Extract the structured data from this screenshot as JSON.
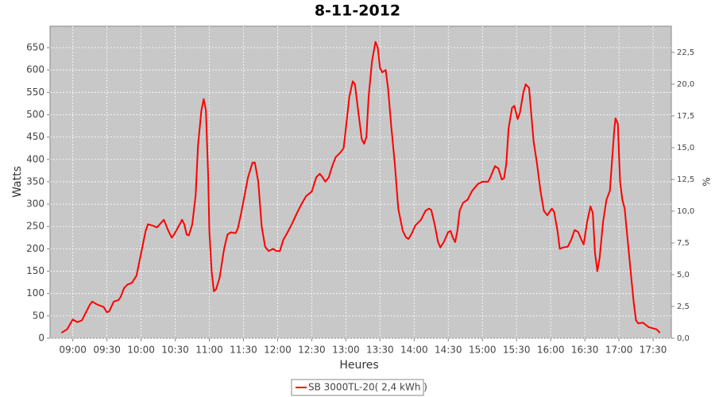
{
  "chart_data": {
    "type": "line",
    "title": "8-11-2012",
    "x_label": "Heures",
    "y_label": "Watts",
    "y2_label": "%",
    "grid": true,
    "legend": "bottom",
    "x": [
      530,
      535,
      540,
      544,
      548,
      551,
      555,
      557,
      561,
      567,
      570,
      572,
      576,
      580,
      582,
      585,
      588,
      592,
      596,
      600,
      604,
      606,
      610,
      614,
      620,
      624,
      627,
      629,
      634,
      636,
      638,
      640,
      642,
      645,
      648,
      650,
      653,
      655,
      657,
      659,
      660,
      662,
      664,
      666,
      669,
      673,
      676,
      679,
      683,
      685,
      688,
      691,
      694,
      698,
      700,
      703,
      706,
      709,
      712,
      716,
      719,
      722,
      725,
      729,
      733,
      737,
      741,
      745,
      750,
      754,
      757,
      759,
      762,
      765,
      768,
      771,
      775,
      778,
      780,
      783,
      786,
      788,
      791,
      794,
      796,
      798,
      800,
      803,
      806,
      808,
      810,
      812,
      815,
      817,
      820,
      823,
      826,
      830,
      833,
      835,
      838,
      841,
      846,
      850,
      853,
      855,
      858,
      861,
      863,
      866,
      870,
      872,
      874,
      876,
      878,
      880,
      883,
      887,
      891,
      896,
      900,
      905,
      907,
      911,
      914,
      917,
      919,
      921,
      923,
      926,
      928,
      931,
      933,
      936,
      938,
      941,
      943,
      945,
      948,
      951,
      954,
      957,
      961,
      963,
      966,
      968,
      971,
      975,
      978,
      981,
      984,
      987,
      989,
      992,
      995,
      997,
      999,
      1001,
      1003,
      1006,
      1009,
      1012,
      1014,
      1016,
      1017,
      1019,
      1021,
      1023,
      1025,
      1028,
      1031,
      1033,
      1035,
      1037,
      1041,
      1046,
      1050,
      1053,
      1056
    ],
    "series": [
      {
        "name": "SB 3000TL-20( 2,4 kWh )",
        "color": "#ff0000",
        "values": [
          12,
          20,
          42,
          36,
          40,
          55,
          75,
          82,
          76,
          70,
          58,
          60,
          82,
          85,
          92,
          112,
          120,
          124,
          140,
          190,
          240,
          255,
          252,
          248,
          265,
          240,
          225,
          232,
          255,
          265,
          255,
          232,
          230,
          255,
          320,
          430,
          510,
          535,
          510,
          360,
          240,
          150,
          105,
          110,
          135,
          200,
          232,
          237,
          235,
          245,
          280,
          320,
          360,
          393,
          393,
          350,
          250,
          205,
          195,
          200,
          195,
          195,
          220,
          238,
          258,
          280,
          300,
          318,
          328,
          360,
          368,
          362,
          350,
          360,
          385,
          405,
          415,
          425,
          470,
          540,
          575,
          568,
          505,
          445,
          435,
          450,
          540,
          620,
          663,
          650,
          605,
          595,
          600,
          560,
          470,
          390,
          290,
          240,
          225,
          222,
          235,
          252,
          265,
          285,
          290,
          287,
          255,
          215,
          203,
          215,
          238,
          240,
          225,
          215,
          240,
          285,
          303,
          310,
          330,
          345,
          350,
          350,
          360,
          385,
          380,
          355,
          358,
          390,
          470,
          515,
          520,
          490,
          505,
          550,
          568,
          560,
          500,
          440,
          390,
          330,
          285,
          275,
          290,
          283,
          240,
          200,
          203,
          205,
          220,
          242,
          238,
          220,
          210,
          260,
          295,
          280,
          190,
          150,
          180,
          260,
          310,
          330,
          400,
          470,
          492,
          480,
          350,
          310,
          290,
          210,
          130,
          80,
          40,
          33,
          35,
          25,
          22,
          20,
          12
        ]
      }
    ],
    "xlim": [
      520,
      1066
    ],
    "xticks": [
      {
        "value": 540,
        "label": "09:00"
      },
      {
        "value": 570,
        "label": "09:30"
      },
      {
        "value": 600,
        "label": "10:00"
      },
      {
        "value": 630,
        "label": "10:30"
      },
      {
        "value": 660,
        "label": "11:00"
      },
      {
        "value": 690,
        "label": "11:30"
      },
      {
        "value": 720,
        "label": "12:00"
      },
      {
        "value": 750,
        "label": "12:30"
      },
      {
        "value": 780,
        "label": "13:00"
      },
      {
        "value": 810,
        "label": "13:30"
      },
      {
        "value": 840,
        "label": "14:00"
      },
      {
        "value": 870,
        "label": "14:30"
      },
      {
        "value": 900,
        "label": "15:00"
      },
      {
        "value": 930,
        "label": "15:30"
      },
      {
        "value": 960,
        "label": "16:00"
      },
      {
        "value": 990,
        "label": "16:30"
      },
      {
        "value": 1020,
        "label": "17:00"
      },
      {
        "value": 1050,
        "label": "17:30"
      }
    ],
    "ylim": [
      0,
      698
    ],
    "yticks": [
      0,
      50,
      100,
      150,
      200,
      250,
      300,
      350,
      400,
      450,
      500,
      550,
      600,
      650
    ],
    "y2lim": [
      0,
      24.56
    ],
    "y2ticks": [
      {
        "value": 0,
        "label": "0,0"
      },
      {
        "value": 2.5,
        "label": "2,5"
      },
      {
        "value": 5,
        "label": "5,0"
      },
      {
        "value": 7.5,
        "label": "7,5"
      },
      {
        "value": 10,
        "label": "10,0"
      },
      {
        "value": 12.5,
        "label": "12,5"
      },
      {
        "value": 15,
        "label": "15,0"
      },
      {
        "value": 17.5,
        "label": "17,5"
      },
      {
        "value": 20,
        "label": "20,0"
      },
      {
        "value": 22.5,
        "label": "22,5"
      }
    ]
  }
}
